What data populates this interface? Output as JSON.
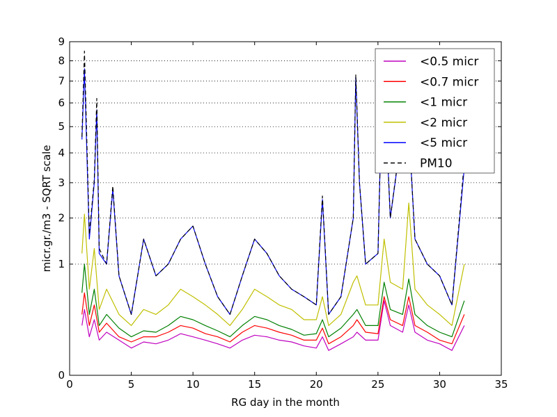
{
  "chart_data": {
    "type": "line",
    "title": "",
    "xlabel": "RG day in the month",
    "ylabel": "micr.gr./m3 - SQRT scale",
    "y_scale": "sqrt",
    "xlim": [
      0,
      35
    ],
    "ylim": [
      0,
      9
    ],
    "x_ticks": [
      0,
      5,
      10,
      15,
      20,
      25,
      30,
      35
    ],
    "y_ticks": [
      0,
      1,
      2,
      3,
      4,
      5,
      6,
      7,
      8,
      9
    ],
    "grid": "horizontal dotted",
    "legend_position": "top-right",
    "series": [
      {
        "name": "<0.5 micr",
        "color": "#bf00bf",
        "style": "solid",
        "x": [
          1,
          1.2,
          1.6,
          2,
          2.4,
          3,
          4,
          5,
          6,
          7,
          8,
          9,
          10,
          11,
          12,
          13,
          14,
          15,
          16,
          17,
          18,
          19,
          20,
          20.5,
          21,
          22,
          23,
          23.3,
          24,
          25,
          25.5,
          26,
          27,
          27.5,
          28,
          29,
          30,
          31,
          32
        ],
        "values": [
          0.2,
          0.35,
          0.12,
          0.25,
          0.1,
          0.15,
          0.1,
          0.06,
          0.09,
          0.08,
          0.1,
          0.14,
          0.12,
          0.1,
          0.08,
          0.06,
          0.1,
          0.13,
          0.12,
          0.1,
          0.09,
          0.07,
          0.06,
          0.12,
          0.05,
          0.08,
          0.12,
          0.15,
          0.1,
          0.1,
          0.45,
          0.2,
          0.15,
          0.4,
          0.15,
          0.1,
          0.08,
          0.05,
          0.2
        ]
      },
      {
        "name": "<0.7 micr",
        "color": "#ff0000",
        "style": "solid",
        "x": [
          1,
          1.2,
          1.6,
          2,
          2.4,
          3,
          4,
          5,
          6,
          7,
          8,
          9,
          10,
          11,
          12,
          13,
          14,
          15,
          16,
          17,
          18,
          19,
          20,
          20.5,
          21,
          22,
          23,
          23.3,
          24,
          25,
          25.5,
          26,
          27,
          27.5,
          28,
          29,
          30,
          31,
          32
        ],
        "values": [
          0.3,
          0.55,
          0.2,
          0.4,
          0.15,
          0.22,
          0.12,
          0.09,
          0.12,
          0.12,
          0.15,
          0.2,
          0.18,
          0.14,
          0.12,
          0.09,
          0.15,
          0.2,
          0.18,
          0.15,
          0.13,
          0.1,
          0.1,
          0.18,
          0.08,
          0.12,
          0.2,
          0.25,
          0.15,
          0.14,
          0.5,
          0.25,
          0.2,
          0.5,
          0.2,
          0.15,
          0.1,
          0.08,
          0.3
        ]
      },
      {
        "name": "<1 micr",
        "color": "#008000",
        "style": "solid",
        "x": [
          1,
          1.2,
          1.6,
          2,
          2.4,
          3,
          4,
          5,
          6,
          7,
          8,
          9,
          10,
          11,
          12,
          13,
          14,
          15,
          16,
          17,
          18,
          19,
          20,
          20.5,
          21,
          22,
          23,
          23.3,
          24,
          25,
          25.5,
          26,
          27,
          27.5,
          28,
          29,
          30,
          31,
          32
        ],
        "values": [
          0.55,
          1.0,
          0.3,
          0.6,
          0.2,
          0.3,
          0.18,
          0.12,
          0.16,
          0.15,
          0.2,
          0.28,
          0.25,
          0.2,
          0.16,
          0.12,
          0.2,
          0.28,
          0.25,
          0.2,
          0.17,
          0.13,
          0.14,
          0.25,
          0.12,
          0.18,
          0.3,
          0.35,
          0.2,
          0.2,
          0.7,
          0.35,
          0.3,
          0.75,
          0.3,
          0.2,
          0.15,
          0.12,
          0.45
        ]
      },
      {
        "name": "<2 micr",
        "color": "#bfbf00",
        "style": "solid",
        "x": [
          1,
          1.2,
          1.6,
          2,
          2.4,
          3,
          4,
          5,
          6,
          7,
          8,
          9,
          10,
          11,
          12,
          13,
          14,
          15,
          16,
          17,
          18,
          19,
          20,
          20.5,
          21,
          22,
          23,
          23.3,
          24,
          25,
          25.5,
          26,
          27,
          27.5,
          28,
          29,
          30,
          31,
          32
        ],
        "values": [
          1.2,
          2.1,
          0.6,
          1.3,
          0.35,
          0.6,
          0.3,
          0.2,
          0.35,
          0.3,
          0.4,
          0.6,
          0.5,
          0.4,
          0.3,
          0.2,
          0.35,
          0.6,
          0.5,
          0.4,
          0.35,
          0.25,
          0.25,
          0.5,
          0.2,
          0.3,
          0.7,
          0.8,
          0.4,
          0.4,
          1.5,
          0.7,
          0.6,
          2.4,
          0.6,
          0.4,
          0.3,
          0.2,
          1.0
        ]
      },
      {
        "name": "<5 micr",
        "color": "#0000ff",
        "style": "solid",
        "x": [
          1,
          1.2,
          1.6,
          2,
          2.2,
          2.4,
          3,
          3.5,
          4,
          5,
          6,
          7,
          8,
          9,
          10,
          11,
          12,
          13,
          14,
          15,
          16,
          17,
          18,
          19,
          20,
          20.5,
          21,
          22,
          23,
          23.2,
          23.5,
          24,
          25,
          25.4,
          26,
          27,
          27.2,
          28,
          29,
          30,
          31,
          32
        ],
        "values": [
          4.5,
          7.6,
          1.5,
          3.0,
          5.7,
          1.2,
          1.0,
          2.8,
          0.8,
          0.3,
          1.5,
          0.8,
          1.0,
          1.5,
          1.8,
          1.0,
          0.5,
          0.3,
          0.8,
          1.5,
          1.2,
          0.8,
          0.6,
          0.5,
          0.4,
          2.5,
          0.3,
          0.5,
          2.0,
          7.2,
          3.0,
          1.0,
          1.2,
          8.5,
          2.0,
          5.0,
          8.0,
          1.5,
          1.0,
          0.8,
          0.4,
          3.5
        ]
      },
      {
        "name": "PM10",
        "color": "#000000",
        "style": "dashed",
        "x": [
          1,
          1.2,
          1.6,
          2,
          2.2,
          2.4,
          3,
          3.5,
          4,
          5,
          6,
          7,
          8,
          9,
          10,
          11,
          12,
          13,
          14,
          15,
          16,
          17,
          18,
          19,
          20,
          20.5,
          21,
          22,
          23,
          23.2,
          23.5,
          24,
          25,
          25.4,
          26,
          27,
          27.2,
          28,
          29,
          30,
          31,
          32
        ],
        "values": [
          4.6,
          8.5,
          1.6,
          3.1,
          6.2,
          1.3,
          1.0,
          2.9,
          0.8,
          0.3,
          1.5,
          0.8,
          1.0,
          1.5,
          1.8,
          1.0,
          0.5,
          0.3,
          0.8,
          1.5,
          1.2,
          0.8,
          0.6,
          0.5,
          0.4,
          2.6,
          0.3,
          0.5,
          2.0,
          7.3,
          3.0,
          1.0,
          1.2,
          8.6,
          2.0,
          5.1,
          8.1,
          1.5,
          1.0,
          0.8,
          0.4,
          3.7
        ]
      }
    ]
  }
}
